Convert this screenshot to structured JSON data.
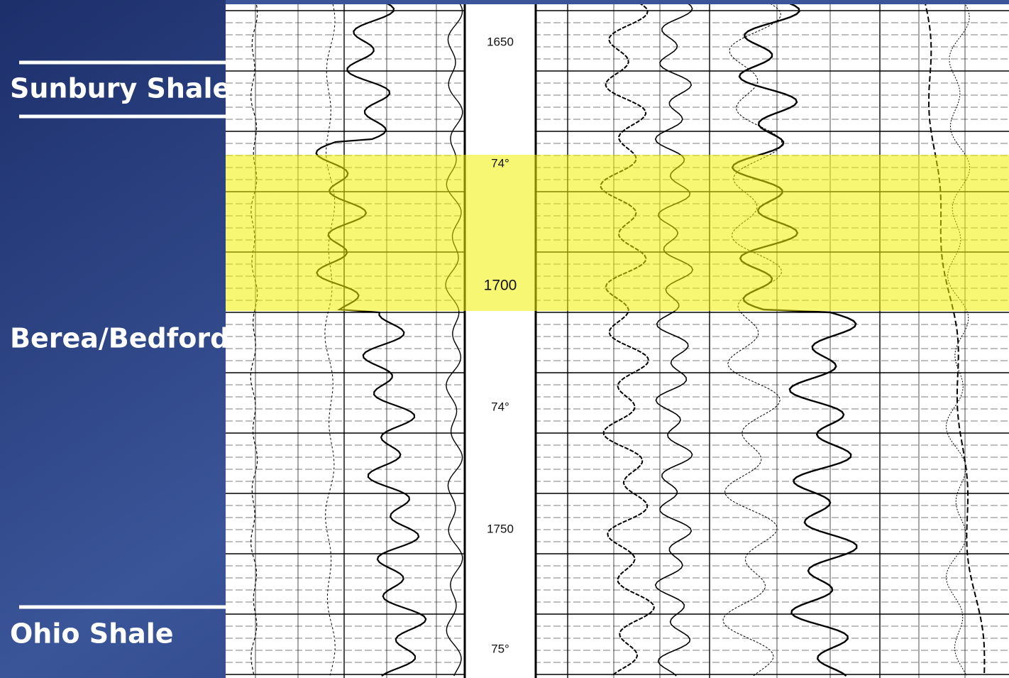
{
  "formations": [
    "Sunbury Shale",
    "Berea/Bedford",
    "Ohio Shale"
  ],
  "log": {
    "depth_labels": [
      "1650",
      "1700",
      "1750"
    ],
    "temperature_labels": [
      "74°",
      "74°",
      "75°"
    ]
  }
}
